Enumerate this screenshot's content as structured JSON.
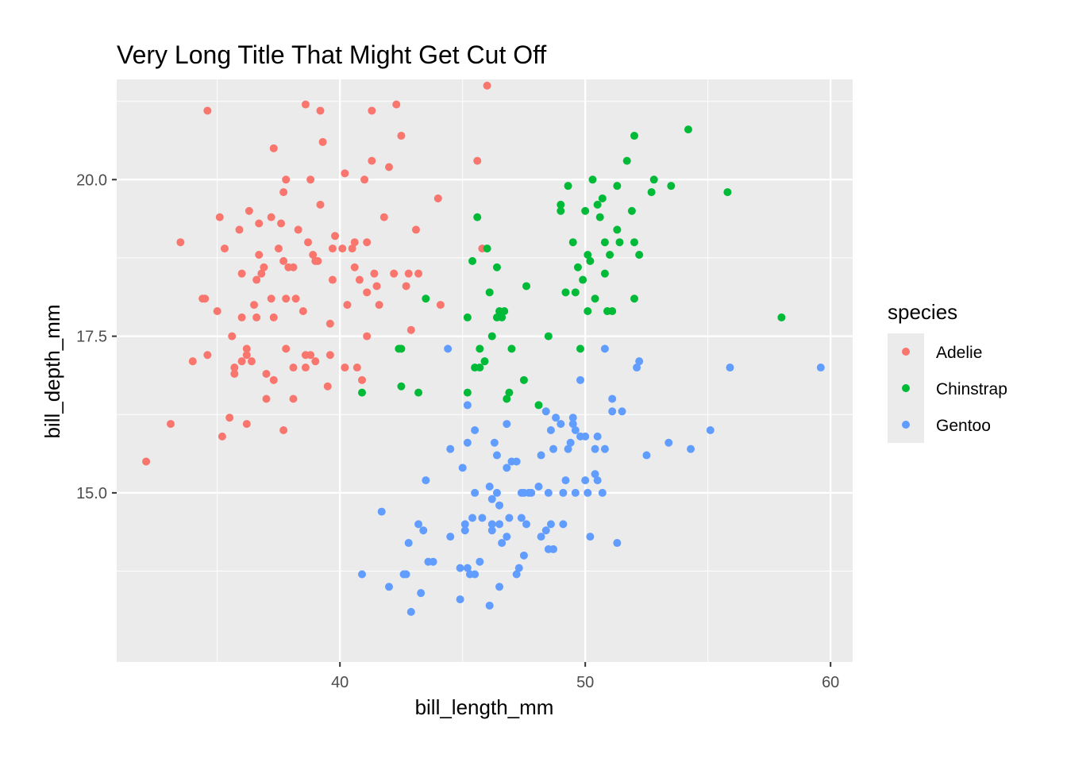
{
  "chart_data": {
    "type": "scatter",
    "title": "Very Long Title That Might Get Cut Off",
    "xlabel": "bill_length_mm",
    "ylabel": "bill_depth_mm",
    "xlim": [
      30.9,
      60.9
    ],
    "ylim": [
      12.3,
      21.6
    ],
    "x_ticks": [
      40,
      50,
      60
    ],
    "x_tick_labels": [
      "40",
      "50",
      "60"
    ],
    "y_ticks": [
      15.0,
      17.5,
      20.0
    ],
    "y_tick_labels": [
      "15.0",
      "17.5",
      "20.0"
    ],
    "grid": true,
    "panel_background": "#ebebeb",
    "legend": {
      "title": "species",
      "position": "right"
    },
    "series": [
      {
        "name": "Adelie",
        "color": "#F8766D",
        "points": [
          [
            32.1,
            15.5
          ],
          [
            33.1,
            16.1
          ],
          [
            33.5,
            19.0
          ],
          [
            34.0,
            17.1
          ],
          [
            34.4,
            18.1
          ],
          [
            34.5,
            18.1
          ],
          [
            34.6,
            21.1
          ],
          [
            34.6,
            17.2
          ],
          [
            35.0,
            17.9
          ],
          [
            35.1,
            19.4
          ],
          [
            35.2,
            15.9
          ],
          [
            35.3,
            18.9
          ],
          [
            35.5,
            16.2
          ],
          [
            35.6,
            17.5
          ],
          [
            35.7,
            17.0
          ],
          [
            35.7,
            16.9
          ],
          [
            35.9,
            19.2
          ],
          [
            36.0,
            18.5
          ],
          [
            36.0,
            17.8
          ],
          [
            36.0,
            17.1
          ],
          [
            36.2,
            16.1
          ],
          [
            36.2,
            17.3
          ],
          [
            36.2,
            17.2
          ],
          [
            36.3,
            19.5
          ],
          [
            36.4,
            17.1
          ],
          [
            36.5,
            18.0
          ],
          [
            36.6,
            17.8
          ],
          [
            36.6,
            18.4
          ],
          [
            36.7,
            19.3
          ],
          [
            36.7,
            18.8
          ],
          [
            36.8,
            18.5
          ],
          [
            36.9,
            18.6
          ],
          [
            37.0,
            16.9
          ],
          [
            37.0,
            16.5
          ],
          [
            37.2,
            18.1
          ],
          [
            37.2,
            19.4
          ],
          [
            37.3,
            20.5
          ],
          [
            37.3,
            17.8
          ],
          [
            37.3,
            16.8
          ],
          [
            37.5,
            18.9
          ],
          [
            37.6,
            19.3
          ],
          [
            37.7,
            18.7
          ],
          [
            37.7,
            16.0
          ],
          [
            37.7,
            19.8
          ],
          [
            37.8,
            18.1
          ],
          [
            37.8,
            17.3
          ],
          [
            37.8,
            20.0
          ],
          [
            37.9,
            18.6
          ],
          [
            38.1,
            18.6
          ],
          [
            38.1,
            17.0
          ],
          [
            38.1,
            16.5
          ],
          [
            38.2,
            18.1
          ],
          [
            38.3,
            19.2
          ],
          [
            38.5,
            17.9
          ],
          [
            38.6,
            21.2
          ],
          [
            38.6,
            17.2
          ],
          [
            38.6,
            17.0
          ],
          [
            38.7,
            19.0
          ],
          [
            38.8,
            17.2
          ],
          [
            38.8,
            20.0
          ],
          [
            38.9,
            18.8
          ],
          [
            39.0,
            17.1
          ],
          [
            39.0,
            18.7
          ],
          [
            39.1,
            18.7
          ],
          [
            39.2,
            19.6
          ],
          [
            39.2,
            21.1
          ],
          [
            39.3,
            20.6
          ],
          [
            39.5,
            16.7
          ],
          [
            39.6,
            17.7
          ],
          [
            39.6,
            17.2
          ],
          [
            39.7,
            18.4
          ],
          [
            39.7,
            18.9
          ],
          [
            39.8,
            19.1
          ],
          [
            40.1,
            18.9
          ],
          [
            40.2,
            17.0
          ],
          [
            40.2,
            20.1
          ],
          [
            40.3,
            18.0
          ],
          [
            40.5,
            18.9
          ],
          [
            40.6,
            19.0
          ],
          [
            40.6,
            18.6
          ],
          [
            40.7,
            17.0
          ],
          [
            40.8,
            18.4
          ],
          [
            40.9,
            16.8
          ],
          [
            41.0,
            20.0
          ],
          [
            41.1,
            18.2
          ],
          [
            41.1,
            17.5
          ],
          [
            41.1,
            19.0
          ],
          [
            41.3,
            21.1
          ],
          [
            41.3,
            20.3
          ],
          [
            41.4,
            18.5
          ],
          [
            41.5,
            18.3
          ],
          [
            41.6,
            18.0
          ],
          [
            41.8,
            19.4
          ],
          [
            42.0,
            20.2
          ],
          [
            42.2,
            18.5
          ],
          [
            42.3,
            21.2
          ],
          [
            42.5,
            20.7
          ],
          [
            42.7,
            18.3
          ],
          [
            42.8,
            18.5
          ],
          [
            42.9,
            17.6
          ],
          [
            43.1,
            19.2
          ],
          [
            43.2,
            18.5
          ],
          [
            44.0,
            19.7
          ],
          [
            44.1,
            18.0
          ],
          [
            45.6,
            20.3
          ],
          [
            45.8,
            18.9
          ],
          [
            46.0,
            21.5
          ]
        ]
      },
      {
        "name": "Chinstrap",
        "color": "#00BA38",
        "points": [
          [
            40.9,
            16.6
          ],
          [
            42.4,
            17.3
          ],
          [
            42.5,
            16.7
          ],
          [
            42.5,
            17.3
          ],
          [
            43.2,
            16.6
          ],
          [
            43.5,
            18.1
          ],
          [
            45.2,
            17.8
          ],
          [
            45.2,
            16.6
          ],
          [
            45.4,
            18.7
          ],
          [
            45.5,
            17.0
          ],
          [
            45.6,
            19.4
          ],
          [
            45.7,
            17.3
          ],
          [
            45.7,
            17.0
          ],
          [
            45.9,
            17.1
          ],
          [
            46.0,
            18.9
          ],
          [
            46.1,
            18.2
          ],
          [
            46.2,
            17.5
          ],
          [
            46.4,
            18.6
          ],
          [
            46.4,
            17.8
          ],
          [
            46.5,
            17.9
          ],
          [
            46.6,
            17.8
          ],
          [
            46.7,
            17.9
          ],
          [
            46.8,
            16.5
          ],
          [
            46.9,
            16.6
          ],
          [
            47.0,
            17.3
          ],
          [
            47.5,
            16.8
          ],
          [
            47.6,
            18.3
          ],
          [
            48.1,
            16.4
          ],
          [
            48.5,
            17.5
          ],
          [
            49.0,
            19.5
          ],
          [
            49.0,
            19.6
          ],
          [
            49.2,
            18.2
          ],
          [
            49.3,
            19.9
          ],
          [
            49.5,
            19.0
          ],
          [
            49.6,
            18.2
          ],
          [
            49.7,
            18.6
          ],
          [
            49.8,
            17.3
          ],
          [
            50.0,
            19.5
          ],
          [
            50.1,
            17.9
          ],
          [
            50.2,
            18.7
          ],
          [
            50.3,
            20.0
          ],
          [
            50.5,
            19.6
          ],
          [
            50.6,
            19.4
          ],
          [
            50.7,
            19.7
          ],
          [
            50.8,
            18.5
          ],
          [
            50.8,
            19.0
          ],
          [
            50.9,
            17.9
          ],
          [
            51.0,
            18.8
          ],
          [
            51.3,
            19.2
          ],
          [
            51.3,
            19.9
          ],
          [
            51.4,
            19.0
          ],
          [
            51.7,
            20.3
          ],
          [
            51.9,
            19.5
          ],
          [
            52.0,
            18.1
          ],
          [
            52.0,
            19.0
          ],
          [
            52.2,
            18.8
          ],
          [
            52.7,
            19.8
          ],
          [
            52.8,
            20.0
          ],
          [
            53.5,
            19.9
          ],
          [
            54.2,
            20.8
          ],
          [
            55.8,
            19.8
          ],
          [
            58.0,
            17.8
          ],
          [
            50.4,
            18.1
          ],
          [
            50.1,
            18.8
          ],
          [
            51.1,
            17.9
          ],
          [
            49.9,
            18.4
          ],
          [
            52.0,
            20.7
          ]
        ]
      },
      {
        "name": "Gentoo",
        "color": "#619CFF",
        "points": [
          [
            40.9,
            13.7
          ],
          [
            41.7,
            14.7
          ],
          [
            42.0,
            13.5
          ],
          [
            42.6,
            13.7
          ],
          [
            42.7,
            13.7
          ],
          [
            42.8,
            14.2
          ],
          [
            42.9,
            13.1
          ],
          [
            43.2,
            14.5
          ],
          [
            43.3,
            13.4
          ],
          [
            43.4,
            14.4
          ],
          [
            43.5,
            15.2
          ],
          [
            43.6,
            13.9
          ],
          [
            43.8,
            13.9
          ],
          [
            44.4,
            17.3
          ],
          [
            44.5,
            15.7
          ],
          [
            44.5,
            14.3
          ],
          [
            44.9,
            13.3
          ],
          [
            45.0,
            15.4
          ],
          [
            45.1,
            14.5
          ],
          [
            45.2,
            15.8
          ],
          [
            45.2,
            16.4
          ],
          [
            45.2,
            13.8
          ],
          [
            45.3,
            13.7
          ],
          [
            45.4,
            14.6
          ],
          [
            45.5,
            15.0
          ],
          [
            45.5,
            13.7
          ],
          [
            45.7,
            13.9
          ],
          [
            45.8,
            14.6
          ],
          [
            46.1,
            13.2
          ],
          [
            46.1,
            15.1
          ],
          [
            46.2,
            14.4
          ],
          [
            46.2,
            14.5
          ],
          [
            46.2,
            14.9
          ],
          [
            46.3,
            15.8
          ],
          [
            46.4,
            15.0
          ],
          [
            46.4,
            15.6
          ],
          [
            46.5,
            14.8
          ],
          [
            46.5,
            13.5
          ],
          [
            46.6,
            14.2
          ],
          [
            46.8,
            15.4
          ],
          [
            46.8,
            14.3
          ],
          [
            46.9,
            14.6
          ],
          [
            47.0,
            15.5
          ],
          [
            47.2,
            13.7
          ],
          [
            47.2,
            15.5
          ],
          [
            47.3,
            13.8
          ],
          [
            47.4,
            14.6
          ],
          [
            47.5,
            14.0
          ],
          [
            47.5,
            15.0
          ],
          [
            47.6,
            14.5
          ],
          [
            47.7,
            15.0
          ],
          [
            47.8,
            15.0
          ],
          [
            48.1,
            15.1
          ],
          [
            48.2,
            14.3
          ],
          [
            48.2,
            15.6
          ],
          [
            48.4,
            14.4
          ],
          [
            48.4,
            16.3
          ],
          [
            48.5,
            14.1
          ],
          [
            48.5,
            15.0
          ],
          [
            48.6,
            16.0
          ],
          [
            48.7,
            14.1
          ],
          [
            48.7,
            15.7
          ],
          [
            48.8,
            16.2
          ],
          [
            49.0,
            16.1
          ],
          [
            49.1,
            14.5
          ],
          [
            49.1,
            15.0
          ],
          [
            49.2,
            15.2
          ],
          [
            49.3,
            15.7
          ],
          [
            49.4,
            15.8
          ],
          [
            49.5,
            16.2
          ],
          [
            49.5,
            16.1
          ],
          [
            49.6,
            15.0
          ],
          [
            49.6,
            16.0
          ],
          [
            49.8,
            15.9
          ],
          [
            49.8,
            16.8
          ],
          [
            50.0,
            15.2
          ],
          [
            50.0,
            15.9
          ],
          [
            50.1,
            15.0
          ],
          [
            50.2,
            14.3
          ],
          [
            50.4,
            15.3
          ],
          [
            50.4,
            15.7
          ],
          [
            50.5,
            15.9
          ],
          [
            50.5,
            15.2
          ],
          [
            50.7,
            15.0
          ],
          [
            50.8,
            15.7
          ],
          [
            50.8,
            17.3
          ],
          [
            51.1,
            16.3
          ],
          [
            51.1,
            16.5
          ],
          [
            51.3,
            14.2
          ],
          [
            51.5,
            16.3
          ],
          [
            52.1,
            17.0
          ],
          [
            52.2,
            17.1
          ],
          [
            52.5,
            15.6
          ],
          [
            53.4,
            15.8
          ],
          [
            54.3,
            15.7
          ],
          [
            55.1,
            16.0
          ],
          [
            55.9,
            17.0
          ],
          [
            59.6,
            17.0
          ],
          [
            45.5,
            16.0
          ],
          [
            46.8,
            16.1
          ],
          [
            44.9,
            13.8
          ],
          [
            47.4,
            15.0
          ],
          [
            48.6,
            14.5
          ],
          [
            46.5,
            14.5
          ],
          [
            45.1,
            14.4
          ]
        ]
      }
    ]
  }
}
